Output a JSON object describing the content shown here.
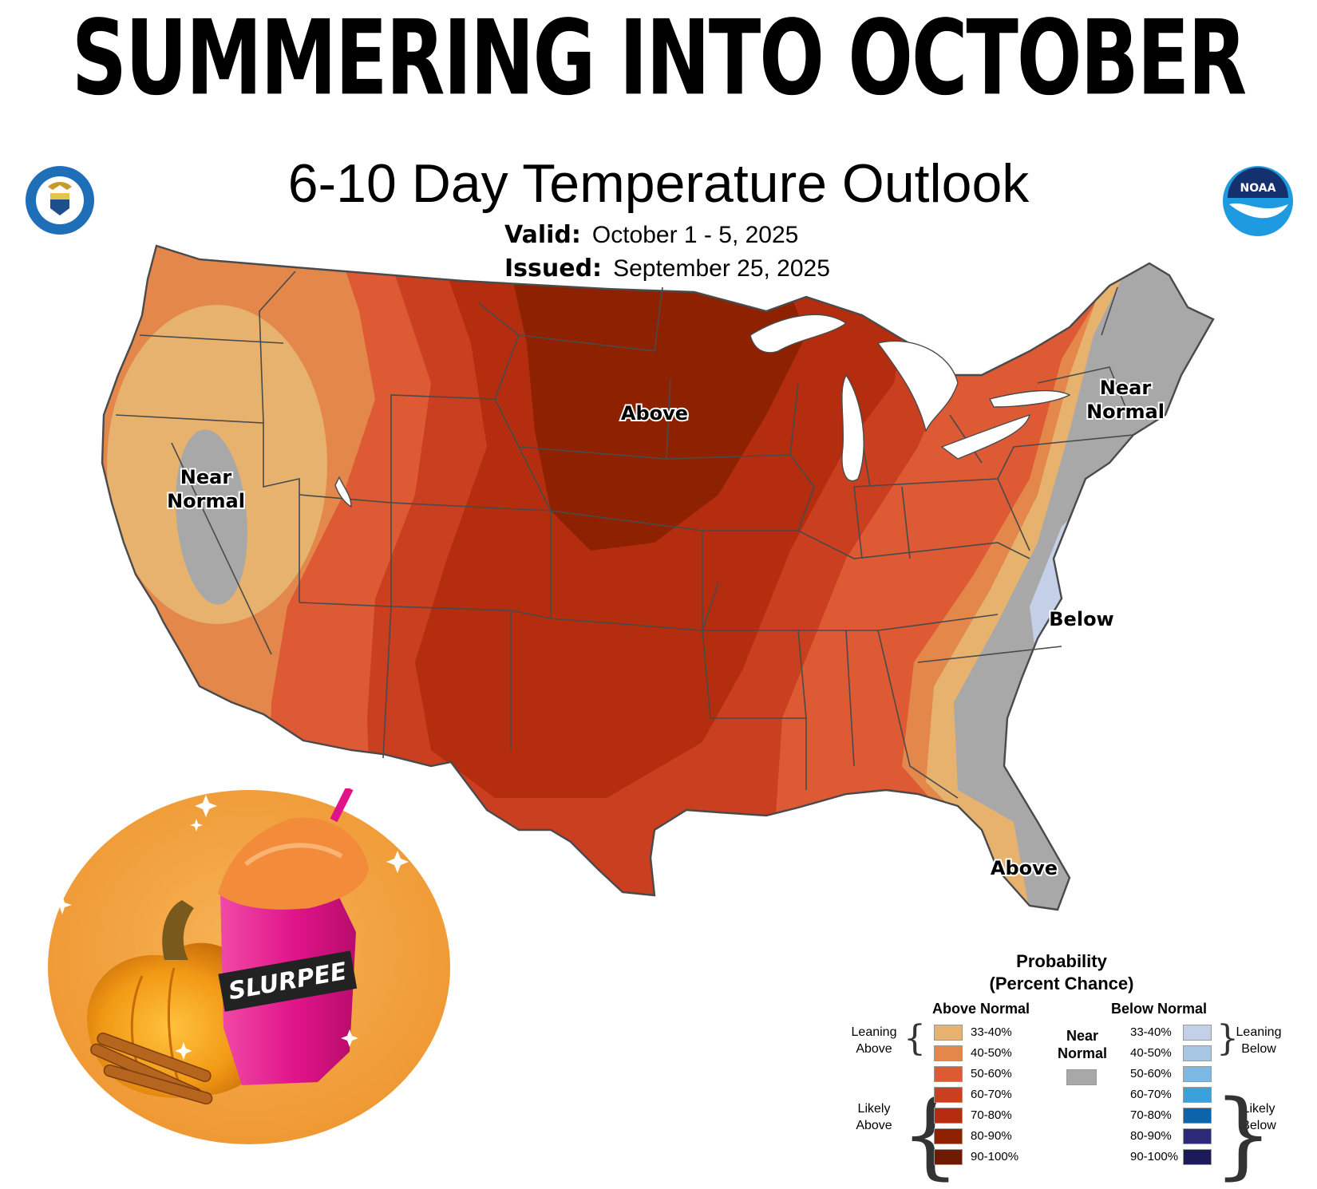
{
  "headline": "SUMMERING INTO OCTOBER",
  "map": {
    "title": "6-10 Day Temperature Outlook",
    "valid_label": "Valid:",
    "valid_value": "October 1 - 5, 2025",
    "issued_label": "Issued:",
    "issued_value": "September 25, 2025",
    "region_labels": {
      "north_central": "Above",
      "west_near_1": "Near",
      "west_near_2": "Normal",
      "northeast_near_1": "Near",
      "northeast_near_2": "Normal",
      "mid_atlantic": "Below",
      "florida": "Above"
    }
  },
  "legend": {
    "title_1": "Probability",
    "title_2": "(Percent Chance)",
    "above_header": "Above Normal",
    "below_header": "Below Normal",
    "near_header_1": "Near",
    "near_header_2": "Normal",
    "leaning_above_1": "Leaning",
    "leaning_above_2": "Above",
    "likely_above_1": "Likely",
    "likely_above_2": "Above",
    "leaning_below_1": "Leaning",
    "leaning_below_2": "Below",
    "likely_below_1": "Likely",
    "likely_below_2": "Below",
    "above_bins": [
      {
        "label": "33-40%",
        "color": "#e6b26e"
      },
      {
        "label": "40-50%",
        "color": "#e4874a"
      },
      {
        "label": "50-60%",
        "color": "#dd5a35"
      },
      {
        "label": "60-70%",
        "color": "#c93f20"
      },
      {
        "label": "70-80%",
        "color": "#b32d0e"
      },
      {
        "label": "80-90%",
        "color": "#8e2200"
      },
      {
        "label": "90-100%",
        "color": "#6e1a00"
      }
    ],
    "below_bins": [
      {
        "label": "33-40%",
        "color": "#c4cfe8"
      },
      {
        "label": "40-50%",
        "color": "#a6c6e4"
      },
      {
        "label": "50-60%",
        "color": "#7cb8e2"
      },
      {
        "label": "60-70%",
        "color": "#3aa1dc"
      },
      {
        "label": "70-80%",
        "color": "#0b64ac"
      },
      {
        "label": "80-90%",
        "color": "#2d2a7a"
      },
      {
        "label": "90-100%",
        "color": "#1c1a58"
      }
    ],
    "near_color": "#a8a8a8"
  },
  "promo": {
    "brand_text": "SLURPEE"
  }
}
